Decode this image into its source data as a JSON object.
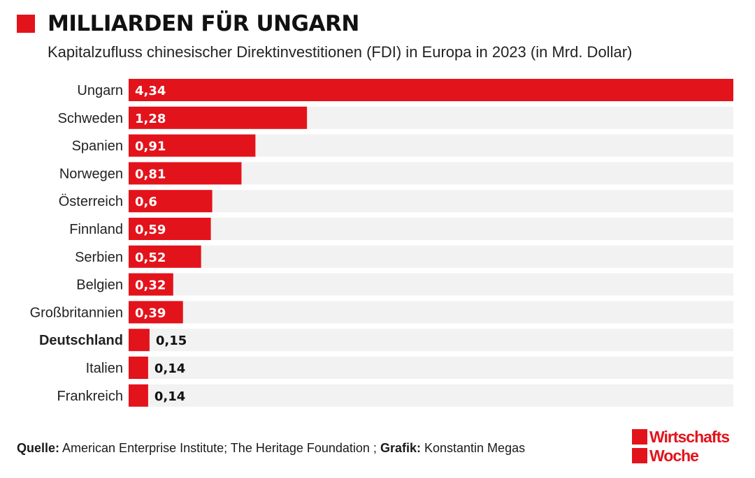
{
  "header": {
    "title": "MILLIARDEN FÜR UNGARN",
    "subtitle": "Kapitalzufluss chinesischer Direktinvestitionen (FDI) in Europa in 2023 (in Mrd. Dollar)"
  },
  "colors": {
    "bar": "#e3131b",
    "track": "#f2f2f2",
    "label_inside": "#ffffff",
    "label_outside": "#111111"
  },
  "chart_data": {
    "type": "bar",
    "orientation": "horizontal",
    "title": "MILLIARDEN FÜR UNGARN",
    "subtitle": "Kapitalzufluss chinesischer Direktinvestitionen (FDI) in Europa in 2023 (in Mrd. Dollar)",
    "categories": [
      "Ungarn",
      "Schweden",
      "Spanien",
      "Norwegen",
      "Österreich",
      "Finnland",
      "Serbien",
      "Belgien",
      "Großbritannien",
      "Deutschland",
      "Italien",
      "Frankreich"
    ],
    "values": [
      4.34,
      1.28,
      0.91,
      0.81,
      0.6,
      0.59,
      0.52,
      0.32,
      0.39,
      0.15,
      0.14,
      0.14
    ],
    "value_labels": [
      "4,34",
      "1,28",
      "0,91",
      "0,81",
      "0,6",
      "0,59",
      "0,52",
      "0,32",
      "0,39",
      "0,15",
      "0,14",
      "0,14"
    ],
    "highlight": "Deutschland",
    "xlim": [
      0,
      4.34
    ],
    "grid": false,
    "legend": "none"
  },
  "footer": {
    "source_label": "Quelle:",
    "source_text": "American Enterprise Institute; The Heritage Foundation ;",
    "graphic_label": "Grafik:",
    "graphic_text": "Konstantin Megas"
  },
  "logo": {
    "line1": "Wirtschafts",
    "line2": "Woche"
  }
}
